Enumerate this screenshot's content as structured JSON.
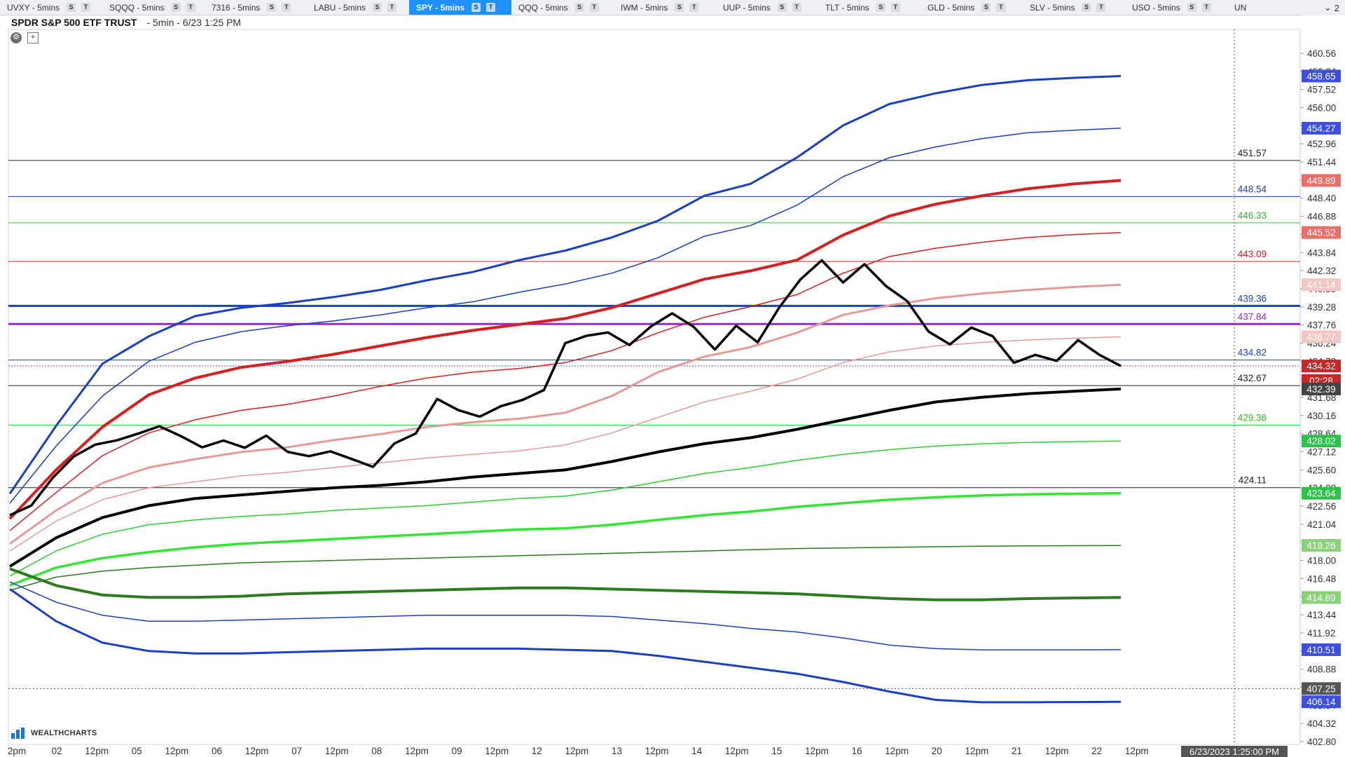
{
  "tabs": [
    {
      "label": "UVXY - 5mins",
      "active": false
    },
    {
      "label": "SQQQ - 5mins",
      "active": false
    },
    {
      "label": "7316 - 5mins",
      "active": false
    },
    {
      "label": "LABU - 5mins",
      "active": false
    },
    {
      "label": "SPY - 5mins",
      "active": true
    },
    {
      "label": "QQQ - 5mins",
      "active": false
    },
    {
      "label": "IWM - 5mins",
      "active": false
    },
    {
      "label": "UUP - 5mins",
      "active": false
    },
    {
      "label": "TLT - 5mins",
      "active": false
    },
    {
      "label": "GLD - 5mins",
      "active": false
    },
    {
      "label": "SLV - 5mins",
      "active": false
    },
    {
      "label": "USO - 5mins",
      "active": false
    },
    {
      "label": "UN",
      "active": false
    }
  ],
  "tab_buttons": [
    "S",
    "T"
  ],
  "tab_overflow": {
    "chevron": "chevron-down-icon",
    "count": "2"
  },
  "header": {
    "symbol_name": "SPDR S&P 500 ETF TRUST",
    "meta": "- 5min - 6/23 1:25 PM"
  },
  "controls": {
    "settings_icon": "settings-icon",
    "add_icon": "plus-icon"
  },
  "logo": {
    "text": "WEALTHCHARTS"
  },
  "chart_data": {
    "type": "line",
    "title": "SPDR S&P 500 ETF TRUST",
    "ylim": [
      402.8,
      461.5
    ],
    "grid": false,
    "x_tick_labels": [
      "2pm",
      "02",
      "12pm",
      "05",
      "12pm",
      "06",
      "12pm",
      "07",
      "12pm",
      "08",
      "12pm",
      "09",
      "12pm",
      "12",
      "12pm",
      "13",
      "12pm",
      "14",
      "12pm",
      "15",
      "12pm",
      "16",
      "12pm",
      "20",
      "12pm",
      "21",
      "12pm",
      "22",
      "12pm"
    ],
    "y_tick_labels": [
      "460.56",
      "459.04",
      "457.52",
      "456.00",
      "454.48",
      "452.96",
      "451.44",
      "449.92",
      "448.40",
      "446.88",
      "445.36",
      "443.84",
      "442.32",
      "440.80",
      "439.28",
      "437.76",
      "436.24",
      "434.72",
      "433.20",
      "431.68",
      "430.16",
      "428.64",
      "427.12",
      "425.60",
      "424.08",
      "422.56",
      "421.04",
      "419.52",
      "418.00",
      "416.48",
      "414.96",
      "413.44",
      "411.92",
      "410.40",
      "408.88",
      "407.36",
      "405.84",
      "404.32",
      "402.80"
    ],
    "horizontal_levels": [
      {
        "value": 451.57,
        "label": "451.57",
        "color": "#222222",
        "width": 1
      },
      {
        "value": 448.54,
        "label": "448.54",
        "color": "#1a3fc4",
        "width": 1
      },
      {
        "value": 446.33,
        "label": "446.33",
        "color": "#33cc33",
        "width": 1
      },
      {
        "value": 443.09,
        "label": "443.09",
        "color": "#d62020",
        "width": 1
      },
      {
        "value": 439.36,
        "label": "439.36",
        "color": "#1a3fc4",
        "width": 3
      },
      {
        "value": 437.84,
        "label": "437.84",
        "color": "#9b27d9",
        "width": 3
      },
      {
        "value": 434.82,
        "label": "434.82",
        "color": "#1a3fc4",
        "width": 1
      },
      {
        "value": 432.67,
        "label": "432.67",
        "color": "#222222",
        "width": 1
      },
      {
        "value": 429.36,
        "label": "429.36",
        "color": "#33cc33",
        "width": 1
      },
      {
        "value": 424.11,
        "label": "424.11",
        "color": "#222222",
        "width": 1
      }
    ],
    "price_badges": [
      {
        "text": "458.65",
        "value": 458.65,
        "color": "#3d4fe0"
      },
      {
        "text": "454.27",
        "value": 454.27,
        "color": "#3d4fe0"
      },
      {
        "text": "449.89",
        "value": 449.89,
        "color": "#e8706a"
      },
      {
        "text": "445.52",
        "value": 445.52,
        "color": "#e8706a"
      },
      {
        "text": "441.14",
        "value": 441.14,
        "color": "#f4c6c4",
        "dark_text": true
      },
      {
        "text": "436.77",
        "value": 436.77,
        "color": "#f4c6c4",
        "dark_text": true
      },
      {
        "text": "434.32",
        "value": 434.32,
        "color": "#c62828"
      },
      {
        "text": "02:28",
        "value": 433.1,
        "color": "#c62828"
      },
      {
        "text": "432.39",
        "value": 432.39,
        "color": "#444444"
      },
      {
        "text": "428.02",
        "value": 428.02,
        "color": "#2ec24a"
      },
      {
        "text": "423.64",
        "value": 423.64,
        "color": "#2ec24a"
      },
      {
        "text": "419.26",
        "value": 419.26,
        "color": "#8bd07a"
      },
      {
        "text": "414.89",
        "value": 414.89,
        "color": "#8bd07a"
      },
      {
        "text": "410.51",
        "value": 410.51,
        "color": "#3d4fe0"
      },
      {
        "text": "407.25",
        "value": 407.25,
        "color": "#555555"
      },
      {
        "text": "406.14",
        "value": 406.14,
        "color": "#3d4fe0"
      }
    ],
    "crosshair": {
      "time_label": "6/23/2023 1:25:00 PM"
    },
    "series": [
      {
        "color": "#1a3fc4",
        "width": 3,
        "values": [
          423.6,
          429.3,
          434.5,
          436.8,
          438.5,
          439.2,
          439.6,
          440.1,
          440.7,
          441.5,
          442.2,
          443.2,
          444.0,
          445.1,
          446.5,
          448.6,
          449.6,
          451.8,
          454.5,
          456.3,
          457.2,
          457.9,
          458.3,
          458.5,
          458.65
        ]
      },
      {
        "color": "#1a3fc4",
        "width": 1.5,
        "values": [
          422.8,
          427.6,
          431.8,
          434.7,
          436.3,
          437.2,
          437.7,
          438.1,
          438.6,
          439.2,
          439.7,
          440.5,
          441.2,
          442.1,
          443.4,
          445.2,
          446.1,
          447.8,
          450.2,
          451.8,
          452.7,
          453.4,
          453.9,
          454.1,
          454.27
        ]
      },
      {
        "color": "#d62020",
        "width": 4,
        "values": [
          421.5,
          425.6,
          429.2,
          431.9,
          433.3,
          434.2,
          434.7,
          435.3,
          436.0,
          436.7,
          437.3,
          437.8,
          438.3,
          439.2,
          440.4,
          441.6,
          442.3,
          443.2,
          445.3,
          446.9,
          447.9,
          448.6,
          449.2,
          449.6,
          449.89
        ]
      },
      {
        "color": "#d62020",
        "width": 1.5,
        "values": [
          420.5,
          423.7,
          426.8,
          428.7,
          429.8,
          430.6,
          431.1,
          431.8,
          432.6,
          433.3,
          433.8,
          434.1,
          434.6,
          435.6,
          437.1,
          438.4,
          439.3,
          440.3,
          442.1,
          443.5,
          444.2,
          444.7,
          445.1,
          445.35,
          445.52
        ]
      },
      {
        "color": "#e59a98",
        "width": 3,
        "values": [
          419.4,
          422.2,
          424.5,
          425.8,
          426.5,
          427.1,
          427.5,
          428.1,
          428.6,
          429.2,
          429.6,
          429.9,
          430.4,
          431.8,
          433.8,
          435.1,
          435.9,
          437.1,
          438.6,
          439.4,
          440.0,
          440.4,
          440.7,
          440.95,
          441.14
        ]
      },
      {
        "color": "#e59a98",
        "width": 1.5,
        "values": [
          418.8,
          421.3,
          423.1,
          424.1,
          424.6,
          425.1,
          425.4,
          425.8,
          426.2,
          426.6,
          426.9,
          427.2,
          427.7,
          428.7,
          430.0,
          431.3,
          432.2,
          433.2,
          434.6,
          435.5,
          436.0,
          436.3,
          436.5,
          436.65,
          436.77
        ]
      },
      {
        "color": "#000000",
        "width": 4,
        "values": [
          417.5,
          419.9,
          421.6,
          422.6,
          423.2,
          423.5,
          423.8,
          424.1,
          424.3,
          424.6,
          425.0,
          425.3,
          425.6,
          426.3,
          427.1,
          427.8,
          428.3,
          429.0,
          429.8,
          430.6,
          431.3,
          431.7,
          432.0,
          432.2,
          432.39
        ]
      },
      {
        "color": "#2ece2e",
        "width": 1.5,
        "values": [
          416.7,
          418.8,
          420.2,
          421.0,
          421.4,
          421.7,
          421.9,
          422.2,
          422.4,
          422.6,
          422.9,
          423.2,
          423.4,
          423.9,
          424.6,
          425.3,
          425.8,
          426.4,
          426.9,
          427.3,
          427.6,
          427.8,
          427.9,
          427.98,
          428.02
        ]
      },
      {
        "color": "#33e633",
        "width": 3.5,
        "values": [
          415.9,
          417.4,
          418.2,
          418.7,
          419.1,
          419.4,
          419.6,
          419.8,
          420.0,
          420.2,
          420.4,
          420.6,
          420.7,
          421.0,
          421.4,
          421.8,
          422.1,
          422.5,
          422.8,
          423.1,
          423.3,
          423.45,
          423.55,
          423.6,
          423.64
        ]
      },
      {
        "color": "#2d7a1f",
        "width": 1.5,
        "values": [
          415.5,
          416.6,
          417.1,
          417.4,
          417.6,
          417.8,
          417.9,
          418.0,
          418.1,
          418.2,
          418.3,
          418.4,
          418.5,
          418.6,
          418.7,
          418.8,
          418.9,
          419.0,
          419.05,
          419.1,
          419.15,
          419.2,
          419.22,
          419.24,
          419.26
        ]
      },
      {
        "color": "#2d7a1f",
        "width": 4,
        "values": [
          417.3,
          415.9,
          415.1,
          414.9,
          414.9,
          415.0,
          415.2,
          415.3,
          415.4,
          415.5,
          415.6,
          415.7,
          415.7,
          415.6,
          415.5,
          415.4,
          415.3,
          415.2,
          415.0,
          414.8,
          414.7,
          414.7,
          414.8,
          414.85,
          414.89
        ]
      },
      {
        "color": "#1a3fc4",
        "width": 1.5,
        "values": [
          416.2,
          414.5,
          413.4,
          412.9,
          412.9,
          413.0,
          413.1,
          413.2,
          413.3,
          413.4,
          413.4,
          413.4,
          413.4,
          413.3,
          413.0,
          412.7,
          412.3,
          412.0,
          411.5,
          410.9,
          410.6,
          410.5,
          410.5,
          410.5,
          410.51
        ]
      },
      {
        "color": "#1a3fc4",
        "width": 3,
        "values": [
          415.6,
          412.9,
          411.1,
          410.4,
          410.2,
          410.2,
          410.3,
          410.4,
          410.5,
          410.6,
          410.6,
          410.6,
          410.5,
          410.4,
          410.0,
          409.5,
          409.0,
          408.5,
          407.8,
          407.0,
          406.3,
          406.1,
          406.1,
          406.12,
          406.14
        ]
      },
      {
        "color": "#000000",
        "width": 3.5,
        "values": [
          421.8,
          422.3,
          424.6,
          426.7,
          428.0,
          428.4,
          428.7,
          429.0,
          428.1,
          427.4,
          428.3,
          427.8,
          428.6,
          426.9,
          426.4,
          427.0,
          426.7,
          426.2,
          428.0,
          428.5,
          431.2,
          430.4,
          430.2,
          431.3,
          431.7,
          432.2,
          435.9,
          436.6,
          437.2,
          436.4,
          437.9,
          438.7,
          437.3,
          435.4,
          437.7,
          436.6,
          439.5,
          441.6,
          442.9,
          441.0,
          442.8,
          441.3,
          440.1,
          437.3,
          435.9,
          437.2,
          436.7,
          434.8,
          435.6,
          434.9,
          436.3,
          434.9,
          434.32
        ]
      }
    ]
  }
}
